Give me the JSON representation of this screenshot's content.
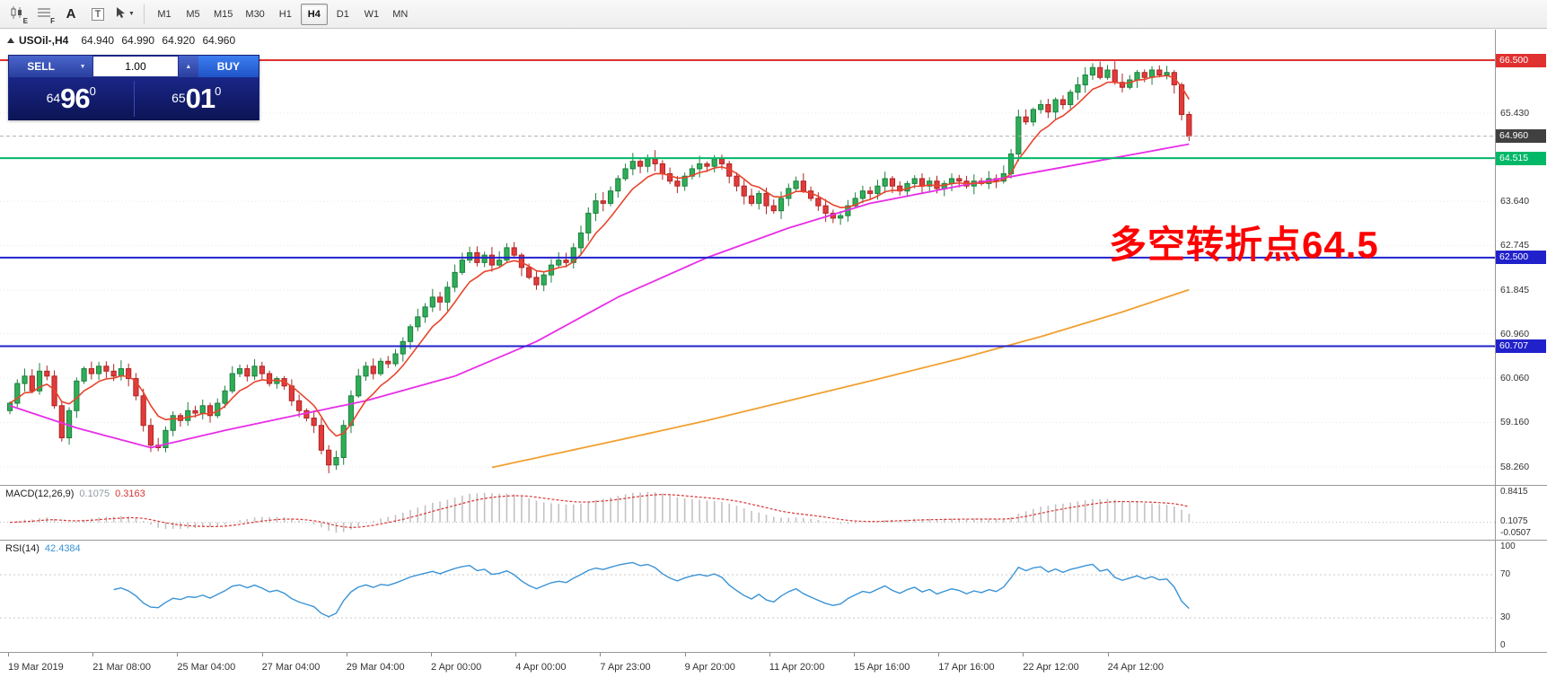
{
  "toolbar": {
    "tools": [
      {
        "id": "chart-window-e",
        "label": "E"
      },
      {
        "id": "chart-window-f",
        "label": "F"
      },
      {
        "id": "text-label-tool",
        "label": "A"
      },
      {
        "id": "text-box-tool",
        "label": "T"
      },
      {
        "id": "cursor-tool",
        "label": ""
      }
    ],
    "timeframes": [
      "M1",
      "M5",
      "M15",
      "M30",
      "H1",
      "H4",
      "D1",
      "W1",
      "MN"
    ],
    "active_timeframe": "H4"
  },
  "chart": {
    "symbol_title": "USOil-,H4",
    "ohlc": "64.940 64.990 64.920 64.960",
    "trade_panel": {
      "sell_label": "SELL",
      "buy_label": "BUY",
      "volume": "1.00",
      "sell_price": {
        "small": "64",
        "big": "96",
        "sup": "0"
      },
      "buy_price": {
        "small": "65",
        "big": "01",
        "sup": "0"
      }
    },
    "annotation": {
      "text": "多空转折点64.5",
      "color": "#fe0000"
    },
    "axis_ticks": [
      {
        "label": "65.430",
        "price": 65.43
      },
      {
        "label": "63.640",
        "price": 63.64
      },
      {
        "label": "62.745",
        "price": 62.745
      },
      {
        "label": "61.845",
        "price": 61.845
      },
      {
        "label": "60.960",
        "price": 60.96
      },
      {
        "label": "60.060",
        "price": 60.06
      },
      {
        "label": "59.160",
        "price": 59.16
      },
      {
        "label": "58.260",
        "price": 58.26
      }
    ],
    "badges": [
      {
        "label": "66.500",
        "price": 66.5,
        "color": "#e03030",
        "line": "solid"
      },
      {
        "label": "64.960",
        "price": 64.96,
        "color": "#404040",
        "line": "dashed"
      },
      {
        "label": "64.515",
        "price": 64.515,
        "color": "#00b868",
        "line": "solid"
      },
      {
        "label": "62.500",
        "price": 62.5,
        "color": "#2121cc",
        "line": "solid"
      },
      {
        "label": "60.707",
        "price": 60.707,
        "color": "#2121cc",
        "line": "solid"
      }
    ]
  },
  "macd": {
    "label": "MACD(12,26,9)",
    "value_main": "0.1075",
    "value_signal": "0.3163",
    "axis": [
      "0.8415",
      "0.1075",
      "-0.0507"
    ]
  },
  "rsi": {
    "label": "RSI(14)",
    "value": "42.4384",
    "axis": [
      100,
      70,
      30,
      0
    ],
    "levels": [
      70,
      30
    ]
  },
  "time_axis": [
    "19 Mar 2019",
    "21 Mar 08:00",
    "25 Mar 04:00",
    "27 Mar 04:00",
    "29 Mar 04:00",
    "2 Apr 00:00",
    "4 Apr 00:00",
    "7 Apr 23:00",
    "9 Apr 20:00",
    "11 Apr 20:00",
    "15 Apr 16:00",
    "17 Apr 16:00",
    "22 Apr 12:00",
    "24 Apr 12:00"
  ],
  "chart_data": {
    "type": "candlestick",
    "symbol": "USOil",
    "timeframe": "H4",
    "title": "USOil-,H4",
    "price_range": [
      58.0,
      66.65
    ],
    "x_labels": [
      "19 Mar 2019",
      "21 Mar 08:00",
      "25 Mar 04:00",
      "27 Mar 04:00",
      "29 Mar 04:00",
      "2 Apr 00:00",
      "4 Apr 00:00",
      "7 Apr 23:00",
      "9 Apr 20:00",
      "11 Apr 20:00",
      "15 Apr 16:00",
      "17 Apr 16:00",
      "22 Apr 12:00",
      "24 Apr 12:00"
    ],
    "last_ohlc": {
      "open": 64.94,
      "high": 64.99,
      "low": 64.92,
      "close": 64.96
    },
    "closes": [
      59.55,
      59.95,
      60.1,
      59.8,
      60.2,
      60.1,
      59.5,
      58.85,
      59.4,
      60.0,
      60.25,
      60.15,
      60.3,
      60.2,
      60.1,
      60.25,
      60.05,
      59.7,
      59.1,
      58.7,
      58.65,
      59.0,
      59.3,
      59.2,
      59.4,
      59.35,
      59.5,
      59.3,
      59.55,
      59.8,
      60.15,
      60.25,
      60.1,
      60.3,
      60.15,
      59.95,
      60.05,
      59.9,
      59.6,
      59.4,
      59.25,
      59.1,
      58.6,
      58.3,
      58.45,
      59.1,
      59.7,
      60.1,
      60.3,
      60.15,
      60.4,
      60.35,
      60.55,
      60.8,
      61.1,
      61.3,
      61.5,
      61.7,
      61.6,
      61.9,
      62.2,
      62.45,
      62.6,
      62.4,
      62.55,
      62.35,
      62.45,
      62.7,
      62.55,
      62.3,
      62.1,
      61.95,
      62.15,
      62.35,
      62.45,
      62.4,
      62.7,
      63.0,
      63.4,
      63.65,
      63.6,
      63.85,
      64.1,
      64.3,
      64.45,
      64.35,
      64.5,
      64.4,
      64.2,
      64.05,
      63.95,
      64.15,
      64.3,
      64.4,
      64.35,
      64.5,
      64.4,
      64.15,
      63.95,
      63.75,
      63.6,
      63.8,
      63.55,
      63.45,
      63.7,
      63.9,
      64.05,
      63.85,
      63.7,
      63.55,
      63.4,
      63.3,
      63.35,
      63.55,
      63.7,
      63.85,
      63.8,
      63.95,
      64.1,
      63.95,
      63.85,
      64.0,
      64.1,
      63.95,
      64.05,
      63.9,
      64.0,
      64.1,
      64.05,
      63.95,
      64.05,
      64.0,
      64.1,
      64.05,
      64.2,
      64.6,
      65.35,
      65.25,
      65.5,
      65.6,
      65.45,
      65.7,
      65.6,
      65.85,
      66.0,
      66.2,
      66.35,
      66.15,
      66.3,
      66.05,
      65.95,
      66.1,
      66.25,
      66.15,
      66.3,
      66.2,
      66.25,
      66.0,
      65.4,
      64.96
    ],
    "overlays": {
      "ma_fast": {
        "style": "ema",
        "period": 7,
        "color": "#e8442c"
      },
      "ma_mid": {
        "color": "#e82ee8",
        "points": [
          [
            0,
            59.5
          ],
          [
            9,
            59.05
          ],
          [
            19,
            58.65
          ],
          [
            29,
            59.0
          ],
          [
            40,
            59.35
          ],
          [
            48,
            59.6
          ],
          [
            60,
            60.1
          ],
          [
            71,
            60.8
          ],
          [
            82,
            61.7
          ],
          [
            94,
            62.5
          ],
          [
            105,
            63.1
          ],
          [
            116,
            63.6
          ],
          [
            128,
            63.95
          ],
          [
            139,
            64.25
          ],
          [
            150,
            64.55
          ],
          [
            159,
            64.8
          ]
        ]
      },
      "ma_slow": {
        "color": "#f0a030",
        "points": [
          [
            65,
            58.25
          ],
          [
            82,
            58.8
          ],
          [
            94,
            59.2
          ],
          [
            105,
            59.6
          ],
          [
            116,
            60.0
          ],
          [
            128,
            60.45
          ],
          [
            139,
            60.9
          ],
          [
            150,
            61.4
          ],
          [
            159,
            61.85
          ]
        ]
      }
    },
    "levels": {
      "resistance": 66.5,
      "pivot_green": 64.515,
      "support_1": 62.5,
      "support_2": 60.707,
      "last_price": 64.96
    },
    "indicators": {
      "macd": {
        "fast": 12,
        "slow": 26,
        "signal": 9,
        "last_value": 0.1075,
        "last_signal": 0.3163,
        "scale_max": 0.8415,
        "scale_min": -0.0507
      },
      "rsi": {
        "period": 14,
        "last_value": 42.4384
      }
    }
  }
}
